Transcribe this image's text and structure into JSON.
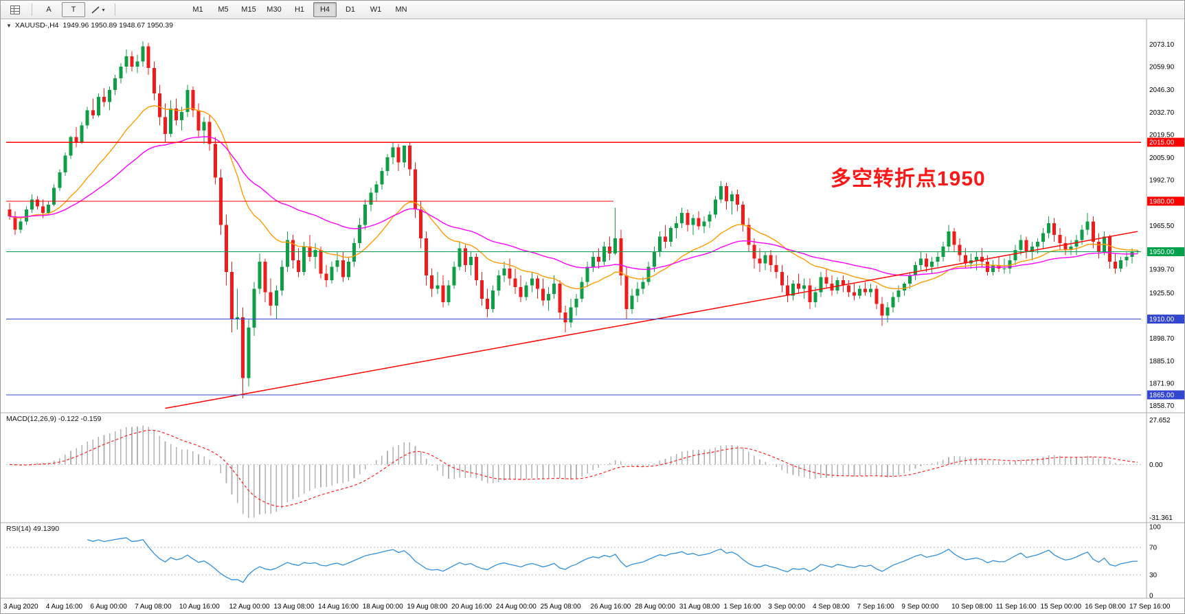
{
  "toolbar": {
    "a_label": "A",
    "t_label": "T",
    "dropdown_caret": "▾",
    "timeframes": [
      {
        "label": "M1",
        "active": false
      },
      {
        "label": "M5",
        "active": false
      },
      {
        "label": "M15",
        "active": false
      },
      {
        "label": "M30",
        "active": false
      },
      {
        "label": "H1",
        "active": false
      },
      {
        "label": "H4",
        "active": true
      },
      {
        "label": "D1",
        "active": false
      },
      {
        "label": "W1",
        "active": false
      },
      {
        "label": "MN",
        "active": false
      }
    ]
  },
  "chart": {
    "symbol_header": "XAUUSD-,H4  1949.96 1950.89 1948.67 1950.39",
    "annotation": {
      "text": "多空转折点1950",
      "color": "#ff1616"
    },
    "price_axis_labels": [
      "2073.10",
      "2059.90",
      "2046.30",
      "2032.70",
      "2019.50",
      "2005.90",
      "1992.70",
      "1965.50",
      "1939.70",
      "1925.50",
      "1898.70",
      "1885.10",
      "1871.90",
      "1858.70"
    ],
    "hlines": [
      {
        "price": 2015.0,
        "tag": "2015.00",
        "color": "#ff0000",
        "extent": 1
      },
      {
        "price": 1980.0,
        "tag": "1980.00",
        "color": "#ff0000",
        "extent": 0.535
      },
      {
        "price": 1950.0,
        "tag": "1950.00",
        "color": "#00a14b",
        "extent": 1
      },
      {
        "price": 1910.0,
        "tag": "1910.00",
        "color": "#3346cf",
        "extent": 1
      },
      {
        "price": 1865.0,
        "tag": "1865.00",
        "color": "#3346cf",
        "extent": 1
      }
    ],
    "trendline": {
      "from_bar": 28,
      "from_price": 1857,
      "to_bar": 203,
      "to_price": 1962,
      "color": "#ff0000"
    },
    "time_labels": [
      "3 Aug 2020",
      "4 Aug 16:00",
      "6 Aug 00:00",
      "7 Aug 08:00",
      "10 Aug 16:00",
      "12 Aug 00:00",
      "13 Aug 08:00",
      "14 Aug 16:00",
      "18 Aug 00:00",
      "19 Aug 08:00",
      "20 Aug 16:00",
      "24 Aug 00:00",
      "25 Aug 08:00",
      "26 Aug 16:00",
      "28 Aug 00:00",
      "31 Aug 08:00",
      "1 Sep 16:00",
      "3 Sep 00:00",
      "4 Sep 08:00",
      "7 Sep 16:00",
      "9 Sep 00:00",
      "10 Sep 08:00",
      "11 Sep 16:00",
      "15 Sep 00:00",
      "16 Sep 08:00",
      "17 Sep 16:00"
    ]
  },
  "chart_data": {
    "type": "candlestick",
    "symbol": "XAUUSD-",
    "timeframe": "H4",
    "title": "XAUUSD-,H4",
    "price_range": [
      1856,
      2086
    ],
    "up_color": "#0f9d45",
    "down_color": "#ef1c1c",
    "last_ohlc": {
      "open": 1949.96,
      "high": 1950.89,
      "low": 1948.67,
      "close": 1950.39
    },
    "overlays": [
      {
        "name": "ma-fast-line",
        "type": "ema",
        "period": 20,
        "color": "#ff9b00"
      },
      {
        "name": "ma-slow-line",
        "type": "ema",
        "period": 45,
        "color": "#ff00ff"
      }
    ],
    "ohlc": [
      [
        1975,
        1979,
        1969,
        1971
      ],
      [
        1971,
        1974,
        1960,
        1963
      ],
      [
        1963,
        1970,
        1961,
        1968
      ],
      [
        1968,
        1977,
        1966,
        1975
      ],
      [
        1975,
        1984,
        1973,
        1981
      ],
      [
        1981,
        1983,
        1975,
        1977
      ],
      [
        1977,
        1981,
        1970,
        1973
      ],
      [
        1973,
        1980,
        1972,
        1978
      ],
      [
        1978,
        1990,
        1977,
        1988
      ],
      [
        1988,
        1999,
        1986,
        1997
      ],
      [
        1997,
        2009,
        1995,
        2007
      ],
      [
        2007,
        2019,
        2005,
        2018
      ],
      [
        2018,
        2024,
        2012,
        2015
      ],
      [
        2015,
        2027,
        2014,
        2025
      ],
      [
        2025,
        2036,
        2023,
        2034
      ],
      [
        2034,
        2041,
        2029,
        2031
      ],
      [
        2031,
        2044,
        2030,
        2042
      ],
      [
        2042,
        2047,
        2036,
        2039
      ],
      [
        2039,
        2048,
        2034,
        2046
      ],
      [
        2046,
        2055,
        2043,
        2053
      ],
      [
        2053,
        2062,
        2050,
        2060
      ],
      [
        2060,
        2070,
        2056,
        2066
      ],
      [
        2066,
        2069,
        2057,
        2060
      ],
      [
        2060,
        2067,
        2056,
        2063
      ],
      [
        2063,
        2075,
        2060,
        2072
      ],
      [
        2072,
        2074,
        2055,
        2059
      ],
      [
        2059,
        2063,
        2040,
        2044
      ],
      [
        2044,
        2049,
        2025,
        2030
      ],
      [
        2030,
        2038,
        2015,
        2020
      ],
      [
        2020,
        2040,
        2018,
        2035
      ],
      [
        2035,
        2041,
        2025,
        2028
      ],
      [
        2028,
        2036,
        2022,
        2033
      ],
      [
        2033,
        2049,
        2030,
        2046
      ],
      [
        2046,
        2048,
        2030,
        2034
      ],
      [
        2034,
        2038,
        2018,
        2022
      ],
      [
        2022,
        2030,
        2014,
        2027
      ],
      [
        2027,
        2031,
        2010,
        2014
      ],
      [
        2014,
        2018,
        1990,
        1994
      ],
      [
        1994,
        1999,
        1960,
        1966
      ],
      [
        1966,
        1972,
        1930,
        1938
      ],
      [
        1938,
        1944,
        1902,
        1910
      ],
      [
        1910,
        1928,
        1904,
        1911
      ],
      [
        1911,
        1917,
        1863,
        1875
      ],
      [
        1875,
        1910,
        1870,
        1905
      ],
      [
        1905,
        1932,
        1900,
        1928
      ],
      [
        1928,
        1949,
        1925,
        1944
      ],
      [
        1944,
        1946,
        1920,
        1926
      ],
      [
        1926,
        1934,
        1912,
        1918
      ],
      [
        1918,
        1930,
        1910,
        1927
      ],
      [
        1927,
        1945,
        1924,
        1941
      ],
      [
        1941,
        1962,
        1938,
        1957
      ],
      [
        1957,
        1960,
        1940,
        1945
      ],
      [
        1945,
        1952,
        1935,
        1938
      ],
      [
        1938,
        1956,
        1936,
        1953
      ],
      [
        1953,
        1960,
        1944,
        1947
      ],
      [
        1947,
        1955,
        1940,
        1951
      ],
      [
        1951,
        1953,
        1934,
        1937
      ],
      [
        1937,
        1942,
        1929,
        1933
      ],
      [
        1933,
        1944,
        1931,
        1941
      ],
      [
        1941,
        1950,
        1938,
        1945
      ],
      [
        1945,
        1950,
        1932,
        1935
      ],
      [
        1935,
        1947,
        1933,
        1944
      ],
      [
        1944,
        1958,
        1941,
        1955
      ],
      [
        1955,
        1970,
        1952,
        1966
      ],
      [
        1966,
        1981,
        1963,
        1978
      ],
      [
        1978,
        1988,
        1974,
        1985
      ],
      [
        1985,
        1992,
        1980,
        1990
      ],
      [
        1990,
        2000,
        1987,
        1998
      ],
      [
        1998,
        2008,
        1995,
        2006
      ],
      [
        2006,
        2015,
        2002,
        2012
      ],
      [
        2012,
        2014,
        1998,
        2003
      ],
      [
        2003,
        2013,
        2000,
        2013
      ],
      [
        2013,
        2015,
        1995,
        1999
      ],
      [
        1999,
        2003,
        1970,
        1975
      ],
      [
        1975,
        1980,
        1952,
        1958
      ],
      [
        1958,
        1962,
        1930,
        1936
      ],
      [
        1936,
        1940,
        1923,
        1928
      ],
      [
        1928,
        1938,
        1925,
        1930
      ],
      [
        1930,
        1936,
        1917,
        1920
      ],
      [
        1920,
        1933,
        1918,
        1930
      ],
      [
        1930,
        1944,
        1928,
        1941
      ],
      [
        1941,
        1956,
        1939,
        1952
      ],
      [
        1952,
        1954,
        1938,
        1942
      ],
      [
        1942,
        1950,
        1936,
        1947
      ],
      [
        1947,
        1949,
        1930,
        1933
      ],
      [
        1933,
        1938,
        1918,
        1922
      ],
      [
        1922,
        1928,
        1911,
        1916
      ],
      [
        1916,
        1930,
        1914,
        1927
      ],
      [
        1927,
        1939,
        1924,
        1936
      ],
      [
        1936,
        1944,
        1932,
        1940
      ],
      [
        1940,
        1946,
        1930,
        1934
      ],
      [
        1934,
        1940,
        1925,
        1929
      ],
      [
        1929,
        1936,
        1920,
        1923
      ],
      [
        1923,
        1932,
        1921,
        1930
      ],
      [
        1930,
        1938,
        1926,
        1934
      ],
      [
        1934,
        1936,
        1922,
        1928
      ],
      [
        1928,
        1934,
        1918,
        1921
      ],
      [
        1921,
        1929,
        1915,
        1925
      ],
      [
        1925,
        1936,
        1922,
        1931
      ],
      [
        1931,
        1933,
        1910,
        1914
      ],
      [
        1914,
        1918,
        1902,
        1908
      ],
      [
        1908,
        1922,
        1905,
        1917
      ],
      [
        1917,
        1925,
        1912,
        1922
      ],
      [
        1922,
        1935,
        1920,
        1932
      ],
      [
        1932,
        1944,
        1929,
        1941
      ],
      [
        1941,
        1950,
        1938,
        1947
      ],
      [
        1947,
        1952,
        1940,
        1944
      ],
      [
        1944,
        1956,
        1942,
        1953
      ],
      [
        1953,
        1959,
        1945,
        1949
      ],
      [
        1949,
        1976,
        1948,
        1958
      ],
      [
        1958,
        1963,
        1930,
        1936
      ],
      [
        1936,
        1941,
        1910,
        1916
      ],
      [
        1916,
        1928,
        1913,
        1924
      ],
      [
        1924,
        1932,
        1920,
        1928
      ],
      [
        1928,
        1935,
        1925,
        1932
      ],
      [
        1932,
        1944,
        1930,
        1941
      ],
      [
        1941,
        1953,
        1938,
        1950
      ],
      [
        1950,
        1962,
        1947,
        1959
      ],
      [
        1959,
        1966,
        1952,
        1956
      ],
      [
        1956,
        1965,
        1953,
        1964
      ],
      [
        1964,
        1971,
        1958,
        1967
      ],
      [
        1967,
        1976,
        1964,
        1973
      ],
      [
        1973,
        1975,
        1962,
        1966
      ],
      [
        1966,
        1972,
        1960,
        1970
      ],
      [
        1970,
        1974,
        1963,
        1965
      ],
      [
        1965,
        1971,
        1961,
        1968
      ],
      [
        1968,
        1974,
        1964,
        1972
      ],
      [
        1972,
        1983,
        1970,
        1981
      ],
      [
        1981,
        1992,
        1979,
        1989
      ],
      [
        1989,
        1991,
        1975,
        1980
      ],
      [
        1980,
        1986,
        1972,
        1984
      ],
      [
        1984,
        1987,
        1974,
        1978
      ],
      [
        1978,
        1980,
        1962,
        1966
      ],
      [
        1966,
        1970,
        1950,
        1954
      ],
      [
        1954,
        1958,
        1940,
        1946
      ],
      [
        1946,
        1952,
        1938,
        1943
      ],
      [
        1943,
        1950,
        1939,
        1948
      ],
      [
        1948,
        1951,
        1938,
        1942
      ],
      [
        1942,
        1948,
        1934,
        1938
      ],
      [
        1938,
        1942,
        1926,
        1930
      ],
      [
        1930,
        1936,
        1920,
        1924
      ],
      [
        1924,
        1933,
        1921,
        1931
      ],
      [
        1931,
        1937,
        1925,
        1928
      ],
      [
        1928,
        1934,
        1922,
        1930
      ],
      [
        1930,
        1934,
        1916,
        1920
      ],
      [
        1920,
        1929,
        1917,
        1926
      ],
      [
        1926,
        1938,
        1923,
        1935
      ],
      [
        1935,
        1940,
        1928,
        1931
      ],
      [
        1931,
        1936,
        1924,
        1927
      ],
      [
        1927,
        1935,
        1925,
        1933
      ],
      [
        1933,
        1936,
        1926,
        1930
      ],
      [
        1930,
        1933,
        1923,
        1926
      ],
      [
        1926,
        1931,
        1921,
        1924
      ],
      [
        1924,
        1930,
        1922,
        1928
      ],
      [
        1928,
        1932,
        1924,
        1926
      ],
      [
        1926,
        1931,
        1923,
        1928
      ],
      [
        1928,
        1930,
        1916,
        1919
      ],
      [
        1919,
        1923,
        1906,
        1912
      ],
      [
        1912,
        1920,
        1908,
        1917
      ],
      [
        1917,
        1926,
        1914,
        1923
      ],
      [
        1923,
        1930,
        1920,
        1927
      ],
      [
        1927,
        1932,
        1924,
        1931
      ],
      [
        1931,
        1938,
        1928,
        1936
      ],
      [
        1936,
        1944,
        1933,
        1942
      ],
      [
        1942,
        1950,
        1939,
        1946
      ],
      [
        1946,
        1949,
        1938,
        1941
      ],
      [
        1941,
        1947,
        1937,
        1944
      ],
      [
        1944,
        1950,
        1941,
        1947
      ],
      [
        1947,
        1956,
        1944,
        1953
      ],
      [
        1953,
        1966,
        1950,
        1962
      ],
      [
        1962,
        1964,
        1950,
        1954
      ],
      [
        1954,
        1958,
        1944,
        1948
      ],
      [
        1948,
        1952,
        1940,
        1943
      ],
      [
        1943,
        1949,
        1940,
        1945
      ],
      [
        1945,
        1950,
        1939,
        1947
      ],
      [
        1947,
        1952,
        1941,
        1944
      ],
      [
        1944,
        1948,
        1936,
        1938
      ],
      [
        1938,
        1945,
        1936,
        1942
      ],
      [
        1942,
        1947,
        1938,
        1940
      ],
      [
        1940,
        1946,
        1937,
        1940
      ],
      [
        1940,
        1948,
        1937,
        1945
      ],
      [
        1945,
        1954,
        1942,
        1951
      ],
      [
        1951,
        1960,
        1948,
        1957
      ],
      [
        1957,
        1959,
        1946,
        1950
      ],
      [
        1950,
        1956,
        1945,
        1953
      ],
      [
        1953,
        1958,
        1949,
        1956
      ],
      [
        1956,
        1964,
        1952,
        1961
      ],
      [
        1961,
        1971,
        1958,
        1967
      ],
      [
        1967,
        1970,
        1956,
        1960
      ],
      [
        1960,
        1964,
        1951,
        1955
      ],
      [
        1955,
        1959,
        1948,
        1951
      ],
      [
        1951,
        1957,
        1948,
        1953
      ],
      [
        1953,
        1960,
        1948,
        1957
      ],
      [
        1957,
        1966,
        1954,
        1963
      ],
      [
        1963,
        1973,
        1960,
        1968
      ],
      [
        1968,
        1971,
        1952,
        1956
      ],
      [
        1956,
        1961,
        1946,
        1950
      ],
      [
        1950,
        1962,
        1948,
        1959
      ],
      [
        1959,
        1960,
        1940,
        1944
      ],
      [
        1944,
        1949,
        1937,
        1940
      ],
      [
        1940,
        1947,
        1938,
        1945
      ],
      [
        1945,
        1950,
        1941,
        1947
      ],
      [
        1947,
        1952,
        1943,
        1949.96
      ],
      [
        1949.96,
        1950.89,
        1948.67,
        1950.39
      ]
    ]
  },
  "macd": {
    "label": "MACD(12,26,9) -0.122 -0.159",
    "params": [
      12,
      26,
      9
    ],
    "values": [
      -0.122,
      -0.159
    ],
    "axis_labels": [
      "27.652",
      "0.00",
      "-31.361"
    ],
    "range": [
      -31.361,
      27.652
    ],
    "histogram_color": "#b2b2b2",
    "signal_color": "#ff2020"
  },
  "rsi": {
    "label": "RSI(14) 49.1390",
    "period": 14,
    "value": 49.139,
    "axis_labels": [
      "100",
      "70",
      "30",
      "0"
    ],
    "levels": [
      70,
      30
    ],
    "line_color": "#2f8fdd"
  }
}
